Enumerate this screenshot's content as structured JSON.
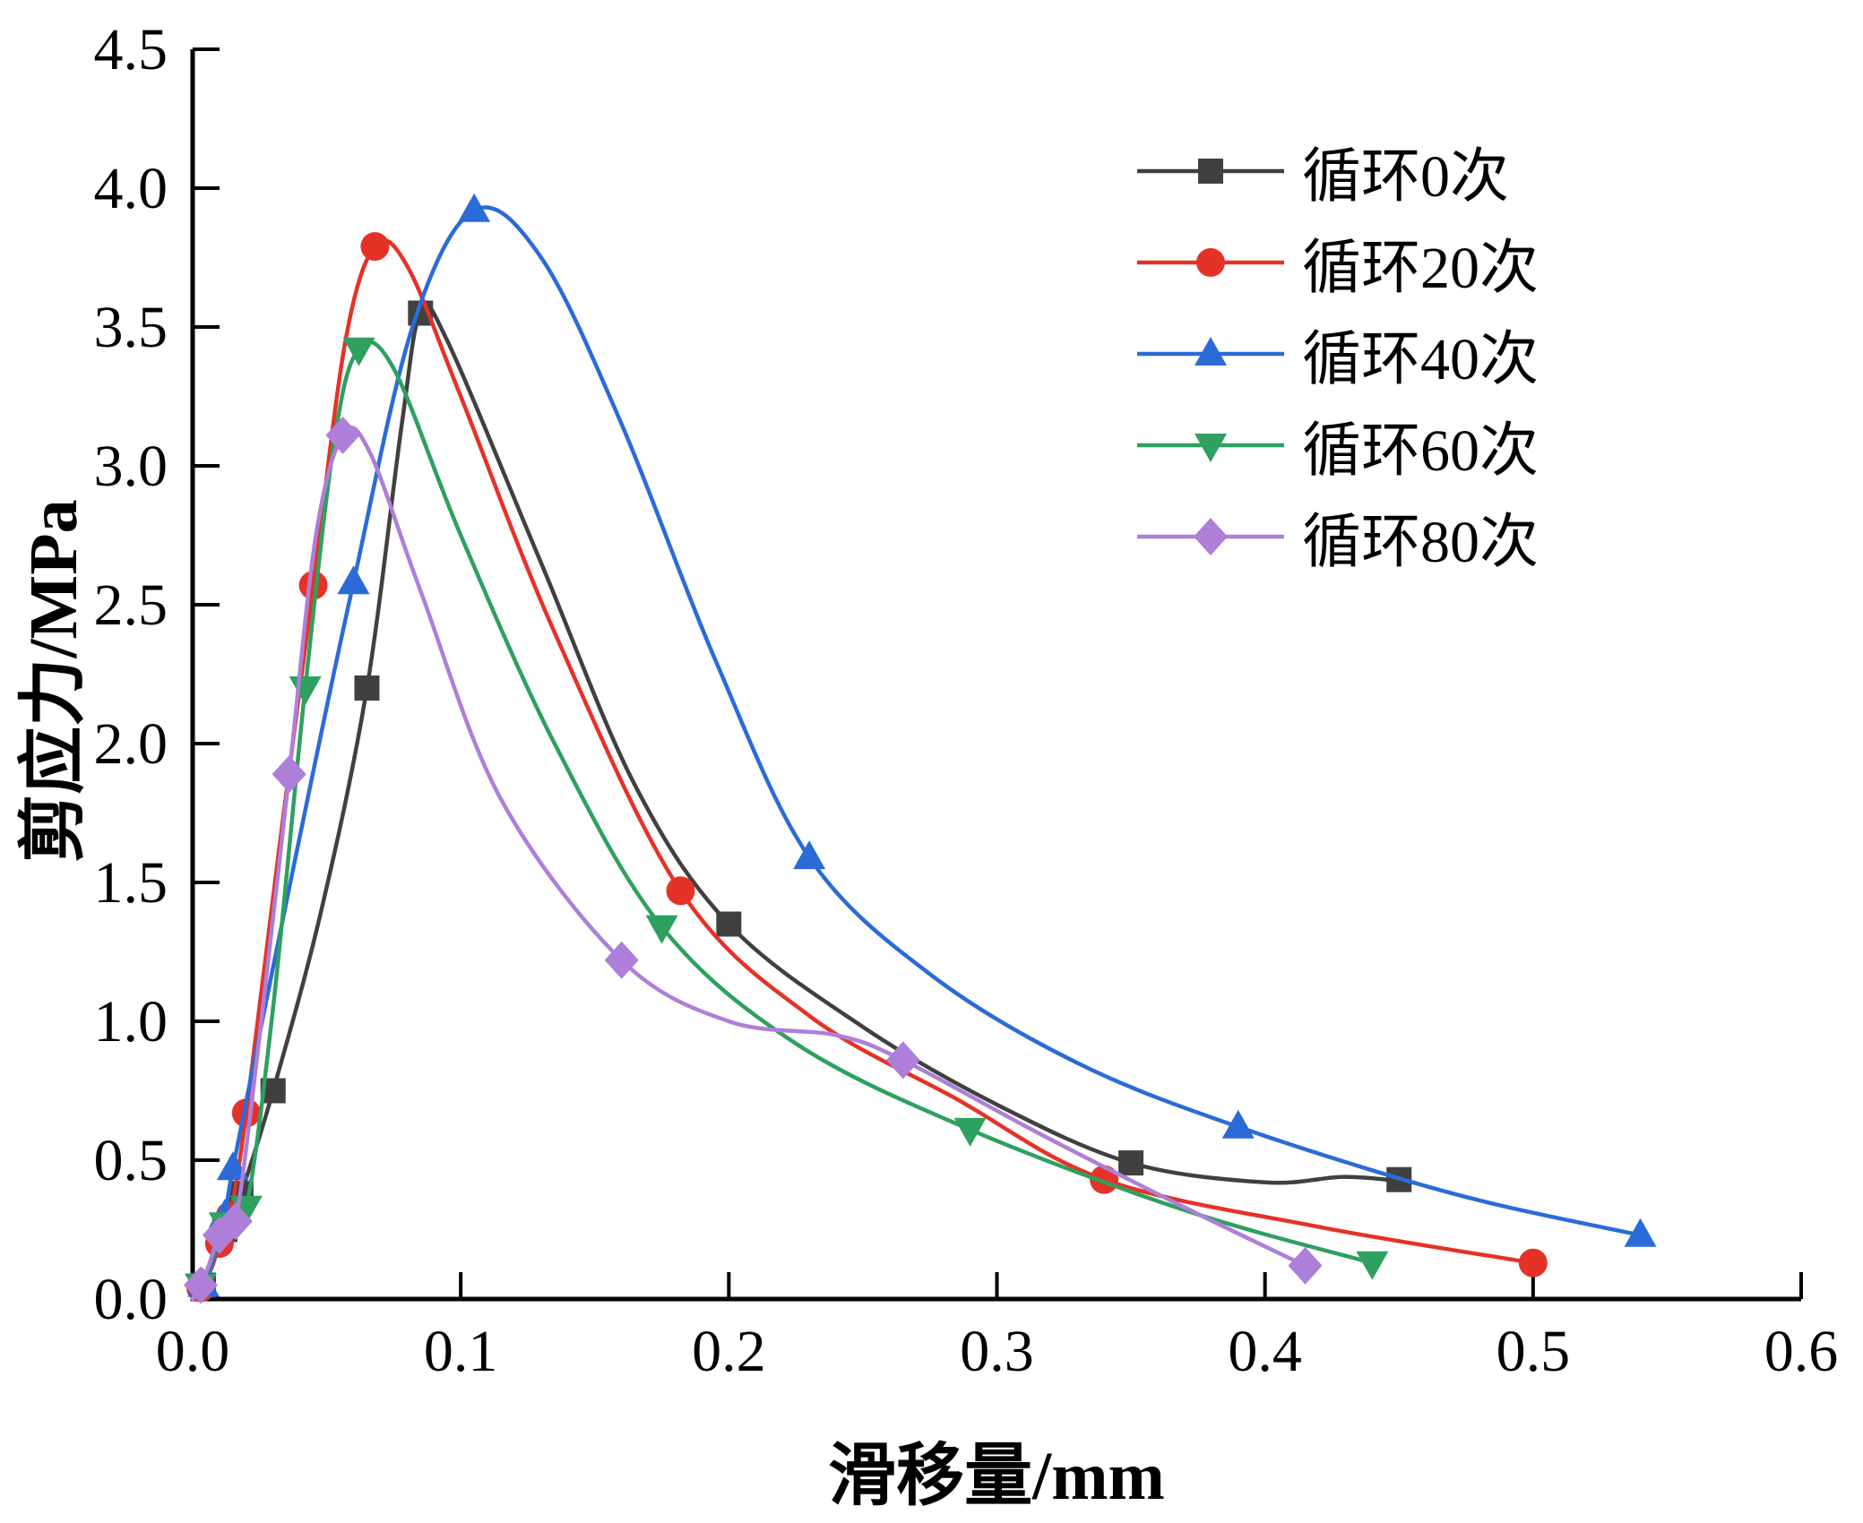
{
  "chart_data": {
    "type": "line",
    "title": "",
    "xlabel": "滑移量/mm",
    "ylabel": "剪应力/MPa",
    "xlim": [
      0,
      0.6
    ],
    "ylim": [
      0,
      4.5
    ],
    "grid": false,
    "legend_position": "top-right",
    "axis_color": "#000000",
    "xticks": [
      0,
      0.1,
      0.2,
      0.3,
      0.4,
      0.5,
      0.6
    ],
    "xtick_labels": [
      "0.0",
      "0.1",
      "0.2",
      "0.3",
      "0.4",
      "0.5",
      "0.6"
    ],
    "yticks": [
      0,
      0.5,
      1.0,
      1.5,
      2.0,
      2.5,
      3.0,
      3.5,
      4.0,
      4.5
    ],
    "ytick_labels": [
      "0.0",
      "0.5",
      "1.0",
      "1.5",
      "2.0",
      "2.5",
      "3.0",
      "3.5",
      "4.0",
      "4.5"
    ],
    "series": [
      {
        "name": "循环0次",
        "color": "#404040",
        "marker": "square",
        "curve": [
          [
            0,
            0
          ],
          [
            0.004,
            0.05
          ],
          [
            0.008,
            0.14
          ],
          [
            0.012,
            0.25
          ],
          [
            0.018,
            0.38
          ],
          [
            0.03,
            0.75
          ],
          [
            0.048,
            1.4
          ],
          [
            0.065,
            2.2
          ],
          [
            0.078,
            3.15
          ],
          [
            0.085,
            3.55
          ],
          [
            0.095,
            3.45
          ],
          [
            0.13,
            2.65
          ],
          [
            0.165,
            1.85
          ],
          [
            0.2,
            1.35
          ],
          [
            0.25,
            0.98
          ],
          [
            0.3,
            0.7
          ],
          [
            0.35,
            0.49
          ],
          [
            0.4,
            0.42
          ],
          [
            0.43,
            0.44
          ],
          [
            0.455,
            0.42
          ]
        ],
        "markers": [
          [
            0.004,
            0.05
          ],
          [
            0.012,
            0.25
          ],
          [
            0.018,
            0.38
          ],
          [
            0.03,
            0.75
          ],
          [
            0.065,
            2.2
          ],
          [
            0.085,
            3.55
          ],
          [
            0.2,
            1.35
          ],
          [
            0.35,
            0.49
          ],
          [
            0.45,
            0.43
          ]
        ]
      },
      {
        "name": "循环20次",
        "color": "#e53228",
        "marker": "circle",
        "curve": [
          [
            0,
            0
          ],
          [
            0.003,
            0.04
          ],
          [
            0.007,
            0.11
          ],
          [
            0.01,
            0.2
          ],
          [
            0.014,
            0.3
          ],
          [
            0.02,
            0.67
          ],
          [
            0.032,
            1.6
          ],
          [
            0.045,
            2.57
          ],
          [
            0.057,
            3.45
          ],
          [
            0.068,
            3.79
          ],
          [
            0.08,
            3.72
          ],
          [
            0.1,
            3.25
          ],
          [
            0.135,
            2.4
          ],
          [
            0.182,
            1.47
          ],
          [
            0.23,
            1.02
          ],
          [
            0.285,
            0.72
          ],
          [
            0.34,
            0.43
          ],
          [
            0.42,
            0.26
          ],
          [
            0.5,
            0.13
          ]
        ],
        "markers": [
          [
            0.003,
            0.04
          ],
          [
            0.01,
            0.2
          ],
          [
            0.014,
            0.3
          ],
          [
            0.02,
            0.67
          ],
          [
            0.045,
            2.57
          ],
          [
            0.068,
            3.79
          ],
          [
            0.182,
            1.47
          ],
          [
            0.34,
            0.43
          ],
          [
            0.5,
            0.13
          ]
        ]
      },
      {
        "name": "循环40次",
        "color": "#2b6bd8",
        "marker": "triangle-up",
        "curve": [
          [
            0,
            0
          ],
          [
            0.004,
            0.05
          ],
          [
            0.008,
            0.15
          ],
          [
            0.012,
            0.3
          ],
          [
            0.015,
            0.47
          ],
          [
            0.028,
            1.1
          ],
          [
            0.045,
            1.9
          ],
          [
            0.06,
            2.58
          ],
          [
            0.082,
            3.5
          ],
          [
            0.105,
            3.92
          ],
          [
            0.13,
            3.75
          ],
          [
            0.16,
            3.15
          ],
          [
            0.195,
            2.3
          ],
          [
            0.23,
            1.59
          ],
          [
            0.275,
            1.17
          ],
          [
            0.33,
            0.85
          ],
          [
            0.39,
            0.62
          ],
          [
            0.47,
            0.38
          ],
          [
            0.54,
            0.23
          ]
        ],
        "markers": [
          [
            0.004,
            0.05
          ],
          [
            0.012,
            0.3
          ],
          [
            0.015,
            0.47
          ],
          [
            0.06,
            2.58
          ],
          [
            0.105,
            3.92
          ],
          [
            0.23,
            1.59
          ],
          [
            0.39,
            0.62
          ],
          [
            0.54,
            0.23
          ]
        ]
      },
      {
        "name": "循环60次",
        "color": "#2ea05f",
        "marker": "triangle-down",
        "curve": [
          [
            0,
            0
          ],
          [
            0.003,
            0.05
          ],
          [
            0.007,
            0.14
          ],
          [
            0.012,
            0.27
          ],
          [
            0.02,
            0.33
          ],
          [
            0.03,
            1.05
          ],
          [
            0.042,
            2.2
          ],
          [
            0.053,
            3.1
          ],
          [
            0.062,
            3.42
          ],
          [
            0.075,
            3.35
          ],
          [
            0.1,
            2.75
          ],
          [
            0.135,
            2.0
          ],
          [
            0.175,
            1.34
          ],
          [
            0.225,
            0.92
          ],
          [
            0.29,
            0.61
          ],
          [
            0.37,
            0.32
          ],
          [
            0.44,
            0.13
          ]
        ],
        "markers": [
          [
            0.003,
            0.05
          ],
          [
            0.012,
            0.27
          ],
          [
            0.02,
            0.33
          ],
          [
            0.042,
            2.2
          ],
          [
            0.062,
            3.42
          ],
          [
            0.175,
            1.34
          ],
          [
            0.29,
            0.61
          ],
          [
            0.44,
            0.13
          ]
        ]
      },
      {
        "name": "循环80次",
        "color": "#ad7fd9",
        "marker": "diamond",
        "curve": [
          [
            0,
            0
          ],
          [
            0.003,
            0.05
          ],
          [
            0.006,
            0.12
          ],
          [
            0.01,
            0.23
          ],
          [
            0.016,
            0.28
          ],
          [
            0.025,
            0.95
          ],
          [
            0.036,
            1.89
          ],
          [
            0.046,
            2.75
          ],
          [
            0.056,
            3.11
          ],
          [
            0.066,
            3.05
          ],
          [
            0.085,
            2.55
          ],
          [
            0.115,
            1.8
          ],
          [
            0.16,
            1.22
          ],
          [
            0.2,
            1.0
          ],
          [
            0.24,
            0.95
          ],
          [
            0.265,
            0.86
          ],
          [
            0.315,
            0.6
          ],
          [
            0.37,
            0.33
          ],
          [
            0.415,
            0.12
          ]
        ],
        "markers": [
          [
            0.003,
            0.05
          ],
          [
            0.01,
            0.23
          ],
          [
            0.016,
            0.28
          ],
          [
            0.036,
            1.89
          ],
          [
            0.056,
            3.11
          ],
          [
            0.16,
            1.22
          ],
          [
            0.265,
            0.86
          ],
          [
            0.415,
            0.12
          ]
        ]
      }
    ]
  }
}
